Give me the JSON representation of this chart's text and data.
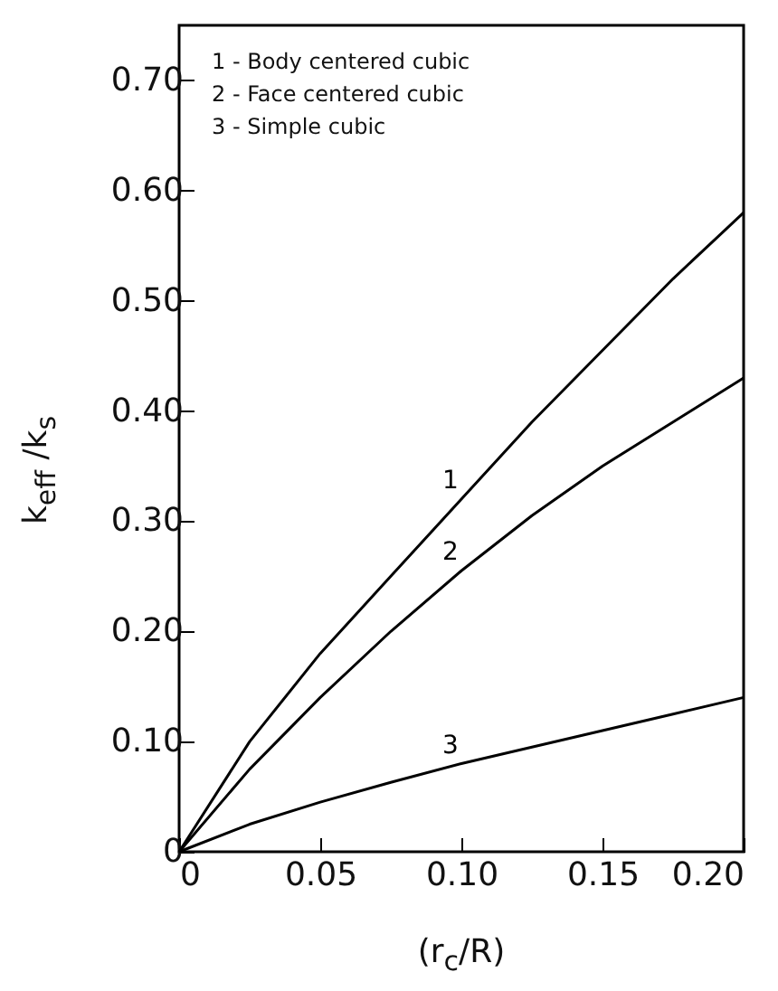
{
  "chart_data": {
    "type": "line",
    "xlabel": "(r$_{c}$/R)",
    "ylabel": "k$_{eff}$ /k$_{s}$",
    "annotations": [
      "1 - Body centered cubic",
      "2 - Face centered cubic",
      "3 - Simple cubic"
    ],
    "x": [
      0,
      0.025,
      0.05,
      0.075,
      0.1,
      0.125,
      0.15,
      0.175,
      0.2
    ],
    "series": [
      {
        "name": "1",
        "color": "#000000",
        "values": [
          0,
          0.1,
          0.18,
          0.25,
          0.32,
          0.39,
          0.455,
          0.52,
          0.58
        ]
      },
      {
        "name": "2",
        "color": "#000000",
        "values": [
          0,
          0.075,
          0.14,
          0.2,
          0.255,
          0.305,
          0.35,
          0.39,
          0.43
        ]
      },
      {
        "name": "3",
        "color": "#000000",
        "values": [
          0,
          0.025,
          0.045,
          0.063,
          0.08,
          0.095,
          0.11,
          0.125,
          0.14
        ]
      }
    ],
    "xlim": [
      0,
      0.2
    ],
    "ylim": [
      0,
      0.75
    ],
    "xticks": [
      0,
      {
        "value": 0.05,
        "label": "0.05"
      },
      {
        "value": 0.1,
        "label": "0.10"
      },
      {
        "value": 0.15,
        "label": "0.15"
      },
      {
        "value": 0.2,
        "label": "0.20"
      }
    ],
    "yticks": [
      0,
      {
        "value": 0.1,
        "label": "0.10"
      },
      {
        "value": 0.2,
        "label": "0.20"
      },
      {
        "value": 0.3,
        "label": "0.30"
      },
      {
        "value": 0.4,
        "label": "0.40"
      },
      {
        "value": 0.5,
        "label": "0.50"
      },
      {
        "value": 0.6,
        "label": "0.60"
      },
      {
        "value": 0.7,
        "label": "0.70"
      }
    ],
    "grid": false,
    "marker": "none",
    "line_style": "solid"
  }
}
